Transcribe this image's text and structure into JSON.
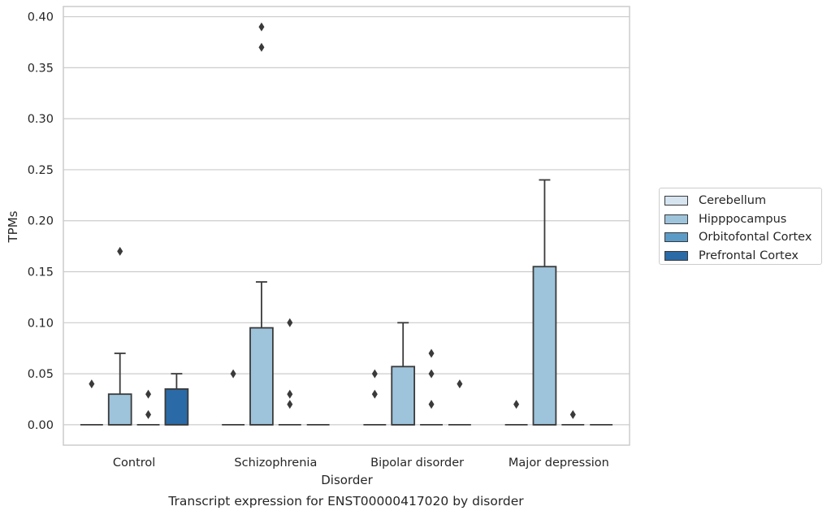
{
  "chart_data": {
    "type": "boxplot",
    "title": "Transcript expression for ENST00000417020 by disorder",
    "xlabel": "Disorder",
    "ylabel": "TPMs",
    "ylim": [
      -0.02,
      0.41
    ],
    "yticks": [
      "0.00",
      "0.05",
      "0.10",
      "0.15",
      "0.20",
      "0.25",
      "0.30",
      "0.35",
      "0.40"
    ],
    "ytick_values": [
      0,
      0.05,
      0.1,
      0.15,
      0.2,
      0.25,
      0.3,
      0.35,
      0.4
    ],
    "categories": [
      "Control",
      "Schizophrenia",
      "Bipolar disorder",
      "Major depression"
    ],
    "grid": "horizontal",
    "legend_position": "right",
    "series": [
      {
        "name": "Cerebellum",
        "color": "#d6e4f0",
        "boxes": [
          {
            "q1": 0,
            "median": 0,
            "q3": 0,
            "whisker_low": 0,
            "whisker_high": 0,
            "outliers": [
              0.04
            ]
          },
          {
            "q1": 0,
            "median": 0,
            "q3": 0,
            "whisker_low": 0,
            "whisker_high": 0,
            "outliers": [
              0.05
            ]
          },
          {
            "q1": 0,
            "median": 0,
            "q3": 0,
            "whisker_low": 0,
            "whisker_high": 0,
            "outliers": [
              0.03,
              0.05
            ]
          },
          {
            "q1": 0,
            "median": 0,
            "q3": 0,
            "whisker_low": 0,
            "whisker_high": 0,
            "outliers": [
              0.02
            ]
          }
        ]
      },
      {
        "name": "Hipppocampus",
        "color": "#9ec4dc",
        "boxes": [
          {
            "q1": 0,
            "median": 0,
            "q3": 0.03,
            "whisker_low": 0,
            "whisker_high": 0.07,
            "outliers": [
              0.17
            ]
          },
          {
            "q1": 0,
            "median": 0,
            "q3": 0.095,
            "whisker_low": 0,
            "whisker_high": 0.14,
            "outliers": [
              0.37,
              0.39
            ]
          },
          {
            "q1": 0,
            "median": 0,
            "q3": 0.057,
            "whisker_low": 0,
            "whisker_high": 0.1,
            "outliers": []
          },
          {
            "q1": 0,
            "median": 0,
            "q3": 0.155,
            "whisker_low": 0,
            "whisker_high": 0.24,
            "outliers": []
          }
        ]
      },
      {
        "name": "Orbitofontal Cortex",
        "color": "#5b9bc8",
        "boxes": [
          {
            "q1": 0,
            "median": 0,
            "q3": 0,
            "whisker_low": 0,
            "whisker_high": 0,
            "outliers": [
              0.01,
              0.03
            ]
          },
          {
            "q1": 0,
            "median": 0,
            "q3": 0,
            "whisker_low": 0,
            "whisker_high": 0,
            "outliers": [
              0.02,
              0.03,
              0.1
            ]
          },
          {
            "q1": 0,
            "median": 0,
            "q3": 0,
            "whisker_low": 0,
            "whisker_high": 0,
            "outliers": [
              0.02,
              0.05,
              0.07
            ]
          },
          {
            "q1": 0,
            "median": 0,
            "q3": 0,
            "whisker_low": 0,
            "whisker_high": 0,
            "outliers": [
              0.01
            ]
          }
        ]
      },
      {
        "name": "Prefrontal Cortex",
        "color": "#2a6aa6",
        "boxes": [
          {
            "q1": 0,
            "median": 0,
            "q3": 0.035,
            "whisker_low": 0,
            "whisker_high": 0.05,
            "outliers": []
          },
          {
            "q1": 0,
            "median": 0,
            "q3": 0,
            "whisker_low": 0,
            "whisker_high": 0,
            "outliers": []
          },
          {
            "q1": 0,
            "median": 0,
            "q3": 0,
            "whisker_low": 0,
            "whisker_high": 0,
            "outliers": [
              0.04
            ]
          },
          {
            "q1": 0,
            "median": 0,
            "q3": 0,
            "whisker_low": 0,
            "whisker_high": 0,
            "outliers": []
          }
        ]
      }
    ]
  }
}
